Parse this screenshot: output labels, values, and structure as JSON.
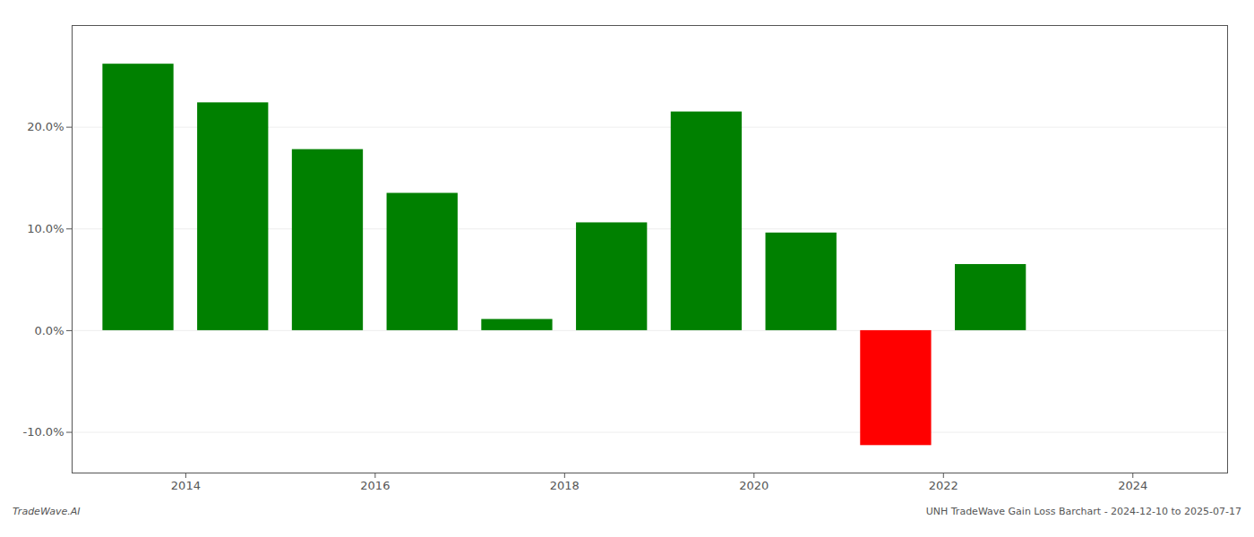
{
  "chart_data": {
    "type": "bar",
    "x": [
      2013.5,
      2014.5,
      2015.5,
      2016.5,
      2017.5,
      2018.5,
      2019.5,
      2020.5,
      2021.5,
      2022.5,
      2023.5
    ],
    "values": [
      0.262,
      0.224,
      0.178,
      0.135,
      0.011,
      0.106,
      0.215,
      0.096,
      -0.113,
      0.065,
      0.0
    ],
    "colors": [
      "#008000",
      "#008000",
      "#008000",
      "#008000",
      "#008000",
      "#008000",
      "#008000",
      "#008000",
      "#ff0000",
      "#008000",
      "#008000"
    ],
    "xlim": [
      2012.8,
      2025.0
    ],
    "ylim": [
      -0.14,
      0.3
    ],
    "xticks": [
      2014,
      2016,
      2018,
      2020,
      2022,
      2024
    ],
    "yticks": [
      {
        "value": -0.1,
        "label": "-10.0%"
      },
      {
        "value": 0.0,
        "label": "0.0%"
      },
      {
        "value": 0.1,
        "label": "10.0%"
      },
      {
        "value": 0.2,
        "label": "20.0%"
      }
    ],
    "grid": true,
    "annotations": [
      "TradeWave.AI",
      "UNH TradeWave Gain Loss Barchart - 2024-12-10 to 2025-07-17"
    ]
  }
}
